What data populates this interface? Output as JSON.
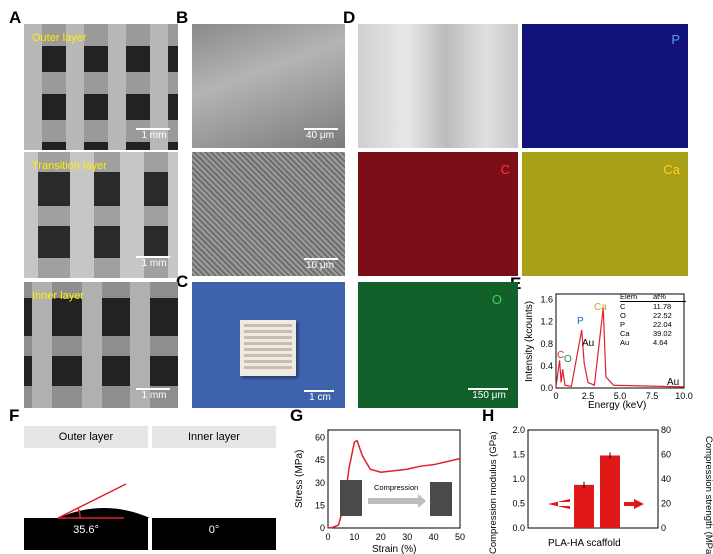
{
  "letters": {
    "A": "A",
    "B": "B",
    "C": "C",
    "D": "D",
    "E": "E",
    "F": "F",
    "G": "G",
    "H": "H"
  },
  "panelA": {
    "outer": "Outer layer",
    "transition": "Transition layer",
    "inner": "Inner layer",
    "scale1": "1 mm",
    "scale2": "1 mm",
    "scale3": "1 mm"
  },
  "panelB": {
    "scale1": "40 μm",
    "scale2": "10 μm"
  },
  "panelC": {
    "scale": "1 cm"
  },
  "panelD": {
    "P": "P",
    "C": "C",
    "Ca": "Ca",
    "O": "O",
    "scale": "150 μm"
  },
  "panelE": {
    "ylabel": "Intensity (kcounts)",
    "xlabel": "Energy (keV)",
    "yticks": [
      "0.0",
      "0.4",
      "0.8",
      "1.2",
      "1.6"
    ],
    "xticks": [
      "0",
      "2.5",
      "5.0",
      "7.5",
      "10.0"
    ],
    "peaks": {
      "C": "C",
      "O": "O",
      "P": "P",
      "Au": "Au",
      "Ca": "Ca",
      "Au2": "Au"
    },
    "table": {
      "head": [
        "Elem",
        "at%"
      ],
      "rows": [
        [
          "C",
          "11.78"
        ],
        [
          "O",
          "22.52"
        ],
        [
          "P",
          "22.04"
        ],
        [
          "Ca",
          "39.02"
        ],
        [
          "Au",
          "4.64"
        ]
      ]
    }
  },
  "panelF": {
    "outer": "Outer layer",
    "inner": "Inner layer",
    "angle1": "35.6°",
    "angle2": "0°"
  },
  "panelG": {
    "ylabel": "Stress (MPa)",
    "xlabel": "Strain (%)",
    "yticks": [
      "0",
      "15",
      "30",
      "45",
      "60"
    ],
    "xticks": [
      "0",
      "10",
      "20",
      "30",
      "40",
      "50"
    ],
    "compression": "Compression"
  },
  "panelH": {
    "ylabel_left": "Compression modulus (GPa)",
    "ylabel_right": "Compression strength (MPa)",
    "xlabel": "PLA-HA scaffold",
    "yticks_left": [
      "0.0",
      "0.5",
      "1.0",
      "1.5",
      "2.0"
    ],
    "yticks_right": [
      "0",
      "20",
      "40",
      "60",
      "80"
    ]
  },
  "colors": {
    "P": "#1a1a9a",
    "C": "#b01020",
    "Ca": "#d8d030",
    "O": "#1a8a3a",
    "curve": "#e02030",
    "bar": "#e01818",
    "label_yellow": "#ffee00"
  },
  "chart_data": [
    {
      "type": "line",
      "title": "",
      "xlabel": "Energy (keV)",
      "ylabel": "Intensity (kcounts)",
      "xlim": [
        0,
        10
      ],
      "ylim": [
        0,
        1.7
      ],
      "series": [
        {
          "values": [
            [
              0,
              0.02
            ],
            [
              0.28,
              0.5
            ],
            [
              0.4,
              0.1
            ],
            [
              0.52,
              0.34
            ],
            [
              0.7,
              0.05
            ],
            [
              1.2,
              0.03
            ],
            [
              2.01,
              1.05
            ],
            [
              2.2,
              0.45
            ],
            [
              2.5,
              0.1
            ],
            [
              3.0,
              0.05
            ],
            [
              3.69,
              1.45
            ],
            [
              3.9,
              0.2
            ],
            [
              4.5,
              0.05
            ],
            [
              10,
              0.02
            ]
          ]
        }
      ]
    },
    {
      "type": "line",
      "title": "",
      "xlabel": "Strain (%)",
      "ylabel": "Stress (MPa)",
      "xlim": [
        0,
        50
      ],
      "ylim": [
        0,
        65
      ],
      "series": [
        {
          "values": [
            [
              0,
              0
            ],
            [
              2,
              0.5
            ],
            [
              4,
              2
            ],
            [
              6,
              15
            ],
            [
              8,
              40
            ],
            [
              10,
              57
            ],
            [
              11,
              58
            ],
            [
              13,
              48
            ],
            [
              16,
              39
            ],
            [
              20,
              37
            ],
            [
              25,
              38
            ],
            [
              30,
              39
            ],
            [
              35,
              41
            ],
            [
              40,
              42
            ],
            [
              45,
              44
            ],
            [
              50,
              46
            ]
          ]
        }
      ]
    },
    {
      "type": "bar",
      "title": "",
      "categories": [
        "Compression modulus",
        "Compression strength"
      ],
      "xlabel": "PLA-HA scaffold",
      "ylabel": "Compression modulus (GPa)",
      "ylim": [
        0,
        2.0
      ],
      "series": [
        {
          "values": [
            0.88,
            1.48
          ]
        }
      ]
    }
  ]
}
